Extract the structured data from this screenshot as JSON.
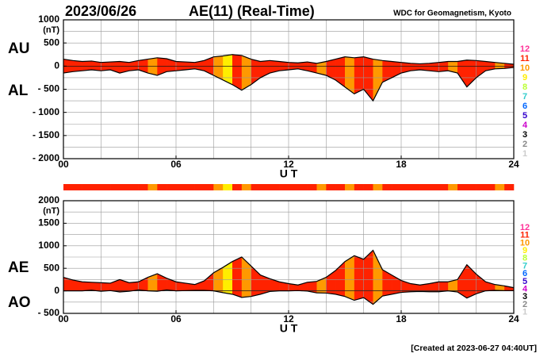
{
  "header": {
    "date": "2023/06/26",
    "title": "AE(11) (Real-Time)",
    "source": "WDC for Geomagnetism, Kyoto",
    "footer": "[Created at 2023-06-27 04:40UT]"
  },
  "time": {
    "x": [
      0,
      0.5,
      1,
      1.5,
      2,
      2.5,
      3,
      3.5,
      4,
      4.5,
      5,
      5.5,
      6,
      6.5,
      7,
      7.5,
      8,
      8.5,
      9,
      9.5,
      10,
      10.5,
      11,
      11.5,
      12,
      12.5,
      13,
      13.5,
      14,
      14.5,
      15,
      15.5,
      16,
      16.5,
      17,
      17.5,
      18,
      18.5,
      19,
      19.5,
      20,
      20.5,
      21,
      21.5,
      22,
      22.5,
      23,
      23.5,
      24
    ],
    "stations": [
      11,
      11,
      11,
      11,
      11,
      11,
      11,
      11,
      11,
      10,
      11,
      11,
      11,
      11,
      11,
      11,
      10,
      9,
      11,
      10,
      11,
      11,
      11,
      11,
      11,
      11,
      11,
      10,
      11,
      11,
      10,
      11,
      11,
      10,
      11,
      11,
      11,
      11,
      11,
      11,
      11,
      10,
      11,
      11,
      11,
      11,
      10,
      11
    ],
    "xgrid": [
      0,
      2,
      4,
      6,
      8,
      10,
      12,
      14,
      16,
      18,
      20,
      22,
      24
    ],
    "legend": {
      "labels": [
        12,
        11,
        10,
        9,
        8,
        7,
        6,
        5,
        4,
        3,
        2,
        1
      ],
      "colors": [
        "#ff3399",
        "#ff2200",
        "#ff9900",
        "#ffee00",
        "#bbff33",
        "#33cccc",
        "#0066ff",
        "#3300cc",
        "#cc00cc",
        "#000000",
        "#888888",
        "#cccccc"
      ]
    }
  },
  "chart_data": [
    {
      "type": "area_band",
      "x_label": "U T",
      "y_unit": "(nT)",
      "series": [
        {
          "name": "AU",
          "values": [
            150,
            120,
            100,
            110,
            80,
            90,
            100,
            80,
            120,
            150,
            180,
            160,
            100,
            90,
            80,
            120,
            200,
            220,
            250,
            230,
            150,
            100,
            120,
            100,
            80,
            70,
            90,
            60,
            100,
            150,
            200,
            180,
            200,
            150,
            120,
            100,
            80,
            60,
            50,
            60,
            80,
            100,
            100,
            130,
            120,
            100,
            80,
            60,
            40
          ]
        },
        {
          "name": "AL",
          "values": [
            -150,
            -120,
            -100,
            -80,
            -100,
            -80,
            -150,
            -100,
            -80,
            -150,
            -200,
            -120,
            -100,
            -80,
            -60,
            -100,
            -200,
            -300,
            -400,
            -520,
            -400,
            -250,
            -150,
            -100,
            -80,
            -60,
            -100,
            -150,
            -200,
            -300,
            -450,
            -600,
            -500,
            -750,
            -350,
            -250,
            -150,
            -100,
            -80,
            -100,
            -120,
            -100,
            -150,
            -450,
            -250,
            -100,
            -60,
            -50,
            -30
          ]
        }
      ],
      "ylim": [
        -2000,
        1000
      ],
      "yticks": [
        1000,
        {
          "value": 500,
          "label": " 500"
        },
        0,
        {
          "value": -500,
          "label": "- 500"
        },
        {
          "value": -1000,
          "label": "- 1000"
        },
        {
          "value": -1500,
          "label": "- 1500"
        },
        {
          "value": -2000,
          "label": "- 2000"
        }
      ],
      "ygrid": [
        1000,
        750,
        500,
        250,
        0,
        -250,
        -500,
        -750,
        -1000,
        -1250,
        -1500,
        -1750,
        -2000
      ],
      "xlim": [
        0,
        24
      ],
      "xticks": [
        {
          "value": 0,
          "label": "00"
        },
        {
          "value": 6,
          "label": "06"
        },
        12,
        18,
        24
      ]
    },
    {
      "type": "area_band",
      "x_label": "U T",
      "y_unit": "(nT)",
      "series": [
        {
          "name": "AE",
          "values": [
            300,
            240,
            200,
            190,
            180,
            170,
            250,
            180,
            200,
            300,
            380,
            280,
            200,
            170,
            140,
            220,
            400,
            520,
            650,
            750,
            550,
            350,
            270,
            200,
            160,
            130,
            190,
            210,
            300,
            450,
            650,
            780,
            700,
            900,
            470,
            350,
            230,
            160,
            130,
            160,
            200,
            200,
            250,
            580,
            370,
            200,
            140,
            110,
            70
          ]
        },
        {
          "name": "AO",
          "values": [
            0,
            0,
            0,
            15,
            -10,
            5,
            -25,
            -10,
            20,
            0,
            -10,
            20,
            0,
            5,
            10,
            10,
            0,
            -40,
            -75,
            -145,
            -125,
            -75,
            -15,
            0,
            0,
            5,
            -5,
            -45,
            -50,
            -75,
            -125,
            -210,
            -150,
            -300,
            -115,
            -75,
            -35,
            -20,
            -15,
            -20,
            -20,
            0,
            -25,
            -160,
            -65,
            0,
            10,
            5,
            5
          ]
        }
      ],
      "ylim": [
        -500,
        2000
      ],
      "yticks": [
        2000,
        1500,
        1000,
        {
          "value": 500,
          "label": " 500"
        },
        0,
        {
          "value": -500,
          "label": "- 500"
        }
      ],
      "ygrid": [
        2000,
        1750,
        1500,
        1250,
        1000,
        750,
        500,
        250,
        0,
        -250,
        -500
      ],
      "xlim": [
        0,
        24
      ],
      "xticks": [
        {
          "value": 0,
          "label": "00"
        },
        {
          "value": 6,
          "label": "06"
        },
        12,
        18,
        24
      ]
    }
  ]
}
